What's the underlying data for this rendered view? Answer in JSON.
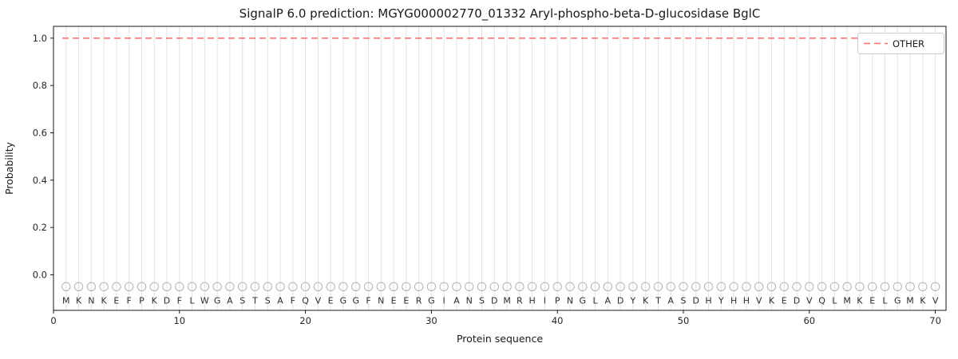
{
  "chart_data": {
    "type": "line",
    "title": "SignalP 6.0 prediction: MGYG000002770_01332 Aryl-phospho-beta-D-glucosidase BglC",
    "xlabel": "Protein sequence",
    "ylabel": "Probability",
    "sequence": "MKNKEFPKDFLWGASTSAFQVEGGFNEERGIANSDMRHIPNGLADYKTASDHYHHVKEDVQLMKELGMKV",
    "series": [
      {
        "name": "OTHER",
        "style": "dashed",
        "y": 1.0,
        "x_start": 0.7,
        "x_end": 70.7
      }
    ],
    "legend": [
      "OTHER"
    ],
    "x_ticks": [
      0,
      10,
      20,
      30,
      40,
      50,
      60,
      70
    ],
    "y_ticks": [
      0.0,
      0.2,
      0.4,
      0.6,
      0.8,
      1.0
    ],
    "xlim": [
      0,
      70.85
    ],
    "ylim": [
      -0.15,
      1.05
    ],
    "marker_y": -0.05,
    "letter_y": -0.108,
    "grid": "vertical-per-residue",
    "colors": {
      "other_line": "#fb6a6a",
      "grid": "#e3e3e3",
      "marker": "#b3b3b3",
      "letter": "#2b2b2b"
    }
  }
}
